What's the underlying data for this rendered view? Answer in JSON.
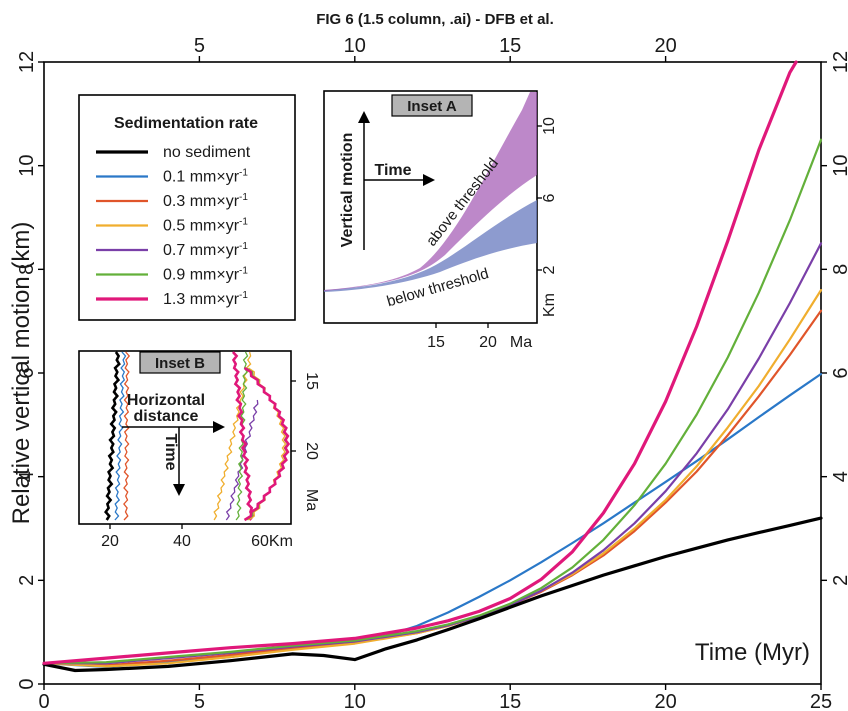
{
  "figure_title": "FIG 6 (1.5 column, .ai) - DFB et al.",
  "chart_data": {
    "type": "line",
    "title": "",
    "xlabel": "Time (Myr)",
    "ylabel": "Relative vertical motion (km)",
    "xlim": [
      0,
      25
    ],
    "ylim": [
      0,
      12
    ],
    "x_ticks": [
      "0",
      "5",
      "10",
      "15",
      "20",
      "25"
    ],
    "y_ticks": [
      "0",
      "2",
      "4",
      "6",
      "8",
      "10",
      "12"
    ],
    "top_ticks": [
      "5",
      "10",
      "15",
      "20"
    ],
    "right_ticks": [
      "2",
      "4",
      "6",
      "8",
      "10",
      "12"
    ],
    "legend_title": "Sedimentation rate",
    "legend_location": "upper-left",
    "series": [
      {
        "name": "no sediment",
        "unit": "",
        "color": "#000000",
        "width": 3.2,
        "x": [
          0,
          1,
          2,
          4,
          6,
          8,
          9,
          10,
          11,
          12,
          13,
          14,
          15,
          16,
          17,
          18,
          19,
          20,
          21,
          22,
          23,
          24,
          25
        ],
        "y": [
          0.38,
          0.26,
          0.28,
          0.34,
          0.45,
          0.58,
          0.55,
          0.47,
          0.68,
          0.85,
          1.05,
          1.26,
          1.48,
          1.7,
          1.9,
          2.1,
          2.28,
          2.46,
          2.62,
          2.78,
          2.92,
          3.06,
          3.2
        ]
      },
      {
        "name": "0.1 mm×yr",
        "unit": "-1",
        "color": "#2a78c8",
        "width": 2.2,
        "x": [
          0,
          2,
          4,
          6,
          8,
          10,
          11,
          12,
          13,
          14,
          15,
          16,
          17,
          18,
          19,
          20,
          21,
          22,
          23,
          24,
          25
        ],
        "y": [
          0.4,
          0.33,
          0.42,
          0.52,
          0.68,
          0.83,
          0.93,
          1.12,
          1.38,
          1.68,
          2.0,
          2.35,
          2.72,
          3.1,
          3.5,
          3.9,
          4.3,
          4.72,
          5.15,
          5.57,
          5.98
        ]
      },
      {
        "name": "0.3 mm×yr",
        "unit": "-1",
        "color": "#e0552a",
        "width": 2.2,
        "x": [
          0,
          2,
          4,
          6,
          8,
          10,
          12,
          13,
          14,
          15,
          16,
          17,
          18,
          19,
          20,
          21,
          22,
          23,
          24,
          25
        ],
        "y": [
          0.4,
          0.36,
          0.45,
          0.56,
          0.7,
          0.8,
          0.98,
          1.12,
          1.3,
          1.52,
          1.78,
          2.1,
          2.48,
          2.95,
          3.5,
          4.1,
          4.8,
          5.55,
          6.35,
          7.2
        ]
      },
      {
        "name": "0.5 mm×yr",
        "unit": "-1",
        "color": "#f0ae2e",
        "width": 2.2,
        "x": [
          0,
          2,
          4,
          6,
          8,
          10,
          12,
          13,
          14,
          15,
          16,
          17,
          18,
          19,
          20,
          21,
          22,
          23,
          24,
          25
        ],
        "y": [
          0.4,
          0.34,
          0.4,
          0.52,
          0.66,
          0.78,
          0.98,
          1.12,
          1.3,
          1.52,
          1.8,
          2.12,
          2.52,
          3.0,
          3.55,
          4.2,
          4.95,
          5.75,
          6.65,
          7.6
        ]
      },
      {
        "name": "0.7 mm×yr",
        "unit": "-1",
        "color": "#7a3fa8",
        "width": 2.2,
        "x": [
          0,
          2,
          4,
          6,
          8,
          10,
          12,
          13,
          14,
          15,
          16,
          17,
          18,
          19,
          20,
          21,
          22,
          23,
          24,
          25
        ],
        "y": [
          0.4,
          0.4,
          0.5,
          0.6,
          0.72,
          0.82,
          1.0,
          1.13,
          1.3,
          1.52,
          1.8,
          2.15,
          2.58,
          3.1,
          3.72,
          4.45,
          5.3,
          6.28,
          7.35,
          8.5
        ]
      },
      {
        "name": "0.9 mm×yr",
        "unit": "-1",
        "color": "#63b03a",
        "width": 2.2,
        "x": [
          0,
          2,
          4,
          6,
          8,
          10,
          12,
          13,
          14,
          15,
          16,
          17,
          18,
          19,
          20,
          21,
          22,
          23,
          24,
          25
        ],
        "y": [
          0.4,
          0.42,
          0.52,
          0.62,
          0.74,
          0.84,
          1.02,
          1.15,
          1.32,
          1.55,
          1.85,
          2.25,
          2.78,
          3.45,
          4.25,
          5.2,
          6.3,
          7.55,
          8.95,
          10.5
        ]
      },
      {
        "name": "1.3 mm×yr",
        "unit": "-1",
        "color": "#e0187a",
        "width": 3.2,
        "x": [
          0,
          2,
          4,
          6,
          8,
          10,
          12,
          13,
          14,
          15,
          16,
          17,
          18,
          19,
          20,
          21,
          22,
          23,
          24,
          24.2
        ],
        "y": [
          0.4,
          0.5,
          0.6,
          0.7,
          0.78,
          0.88,
          1.08,
          1.22,
          1.4,
          1.65,
          2.02,
          2.55,
          3.3,
          4.25,
          5.45,
          6.9,
          8.55,
          10.3,
          11.8,
          12.0
        ]
      }
    ]
  },
  "inset_a": {
    "title": "Inset A",
    "ylabel": "Vertical motion",
    "xlabel": "Time",
    "upper_band_label": "above threshold",
    "lower_band_label": "below threshold",
    "x_ticks": [
      "15",
      "20",
      "Ma"
    ],
    "right_ticks": [
      "10",
      "6",
      "2",
      "Km"
    ],
    "upper_band_color": "#a45ab4",
    "lower_band_color": "#6d7fc2"
  },
  "inset_b": {
    "title": "Inset B",
    "xlabel": "Horizontal distance",
    "ylabel": "Time",
    "x_ticks": [
      "20",
      "40",
      "60Km"
    ],
    "right_ticks": [
      "15",
      "20",
      "Ma"
    ]
  }
}
